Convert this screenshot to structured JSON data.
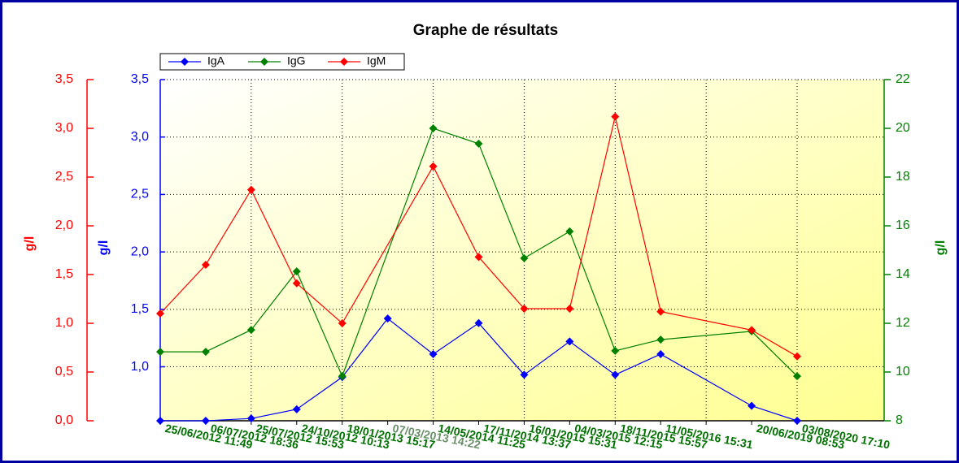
{
  "chart_data": {
    "type": "line",
    "title": "Graphe de résultats",
    "categories": [
      "25/06/2012 11:49",
      "06/07/2012 18:36",
      "25/07/2012 15:53",
      "24/10/2012 10:13",
      "18/01/2013 15:17",
      "07/03/2013 14:22",
      "14/05/2014 11:25",
      "17/11/2014 13:37",
      "16/01/2015 15:31",
      "04/03/2015 12:15",
      "18/11/2015 15:57",
      "11/05/2016 15:31",
      null,
      "20/06/2019 08:53",
      "03/08/2020 17:10"
    ],
    "series": [
      {
        "name": "IgA",
        "color": "#0000ff",
        "axis": "y",
        "x": [
          0,
          1,
          2,
          3,
          4,
          5,
          6,
          7,
          8,
          9,
          10,
          11,
          13,
          14
        ],
        "values": [
          0.53,
          0.53,
          0.55,
          0.63,
          0.91,
          1.42,
          1.11,
          1.38,
          0.93,
          1.22,
          0.93,
          1.11,
          0.66,
          0.53
        ]
      },
      {
        "name": "IgG",
        "color": "#008000",
        "axis": "y3",
        "x": [
          0,
          1,
          2,
          3,
          4,
          6,
          7,
          8,
          9,
          10,
          11,
          13,
          14
        ],
        "values": [
          10.83,
          10.83,
          11.73,
          14.13,
          9.83,
          20,
          19.37,
          14.67,
          15.77,
          10.87,
          11.33,
          11.67,
          9.83
        ]
      },
      {
        "name": "IgM",
        "color": "#ff0000",
        "axis": "y2",
        "x": [
          0,
          1,
          2,
          3,
          4,
          6,
          7,
          8,
          9,
          10,
          11,
          13,
          14
        ],
        "values": [
          1.1,
          1.6,
          2.37,
          1.41,
          1.0,
          2.61,
          1.68,
          1.15,
          1.15,
          3.12,
          1.12,
          0.93,
          0.66
        ]
      }
    ],
    "y_label": "g/l",
    "ylim": [
      0.53,
      3.5
    ],
    "yticks": [
      {
        "value": 1,
        "label": "1,0"
      },
      {
        "value": 1.5,
        "label": "1,5"
      },
      {
        "value": 2,
        "label": "2,0"
      },
      {
        "value": 2.5,
        "label": "2,5"
      },
      {
        "value": 3,
        "label": "3,0"
      },
      {
        "value": 3.5,
        "label": "3,5"
      }
    ],
    "y2_label": "g/l",
    "y2lim": [
      0,
      3.5
    ],
    "y2ticks": [
      {
        "value": 0,
        "label": "0,0"
      },
      {
        "value": 0.5,
        "label": "0,5"
      },
      {
        "value": 1,
        "label": "1,0"
      },
      {
        "value": 1.5,
        "label": "1,5"
      },
      {
        "value": 2,
        "label": "2,0"
      },
      {
        "value": 2.5,
        "label": "2,5"
      },
      {
        "value": 3,
        "label": "3,0"
      },
      {
        "value": 3.5,
        "label": "3,5"
      }
    ],
    "y3_label": "g/l",
    "y3lim": [
      8,
      22
    ],
    "y3ticks": [
      8,
      10,
      12,
      14,
      16,
      18,
      20,
      22
    ],
    "grid": true
  }
}
